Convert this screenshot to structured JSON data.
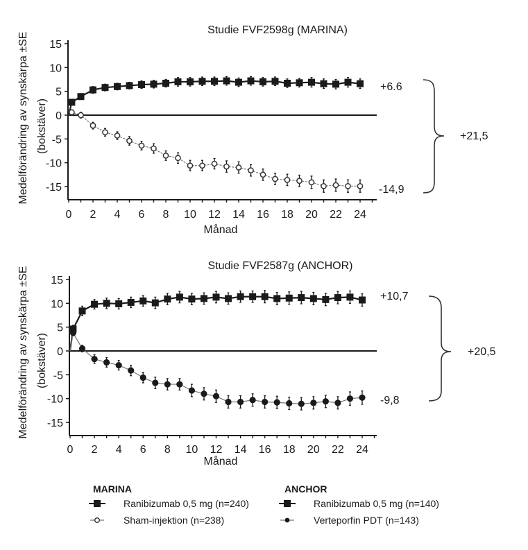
{
  "chart_data": [
    {
      "type": "line",
      "title": "Studie FVF2598g (MARINA)",
      "xlabel": "Månad",
      "ylabel": "Medelförändring av synskärpa ±SE",
      "ylabel2": "(bokstäver)",
      "xlim": [
        0,
        25
      ],
      "ylim": [
        -18,
        16
      ],
      "xticks": [
        "0",
        "2",
        "4",
        "6",
        "8",
        "10",
        "12",
        "14",
        "16",
        "18",
        "20",
        "22",
        "24"
      ],
      "xtick_values": [
        0,
        2,
        4,
        6,
        8,
        10,
        12,
        14,
        16,
        18,
        20,
        22,
        24
      ],
      "yticks": [
        "15",
        "10",
        "5",
        "0",
        "-5",
        "-10",
        "-15"
      ],
      "ytick_values": [
        15,
        10,
        5,
        0,
        -5,
        -10,
        -15
      ],
      "reference_line_y": 0,
      "x": [
        0.25,
        1,
        2,
        3,
        4,
        5,
        6,
        7,
        8,
        9,
        10,
        11,
        12,
        13,
        14,
        15,
        16,
        17,
        18,
        19,
        20,
        21,
        22,
        23,
        24
      ],
      "series": [
        {
          "name": "Ranibizumab 0,5 mg (n=240)",
          "marker": "filled-square",
          "values": [
            2.7,
            3.9,
            5.3,
            5.8,
            6.0,
            6.2,
            6.4,
            6.5,
            6.7,
            7.0,
            7.0,
            7.1,
            7.1,
            7.2,
            6.9,
            7.2,
            7.0,
            7.1,
            6.7,
            6.8,
            6.9,
            6.6,
            6.5,
            6.9,
            6.6
          ],
          "se": [
            0.6,
            0.6,
            0.7,
            0.7,
            0.7,
            0.7,
            0.8,
            0.8,
            0.8,
            0.9,
            0.9,
            0.9,
            0.9,
            0.9,
            0.9,
            0.9,
            0.9,
            0.9,
            0.9,
            0.9,
            1.0,
            1.0,
            1.0,
            1.0,
            1.0
          ]
        },
        {
          "name": "Sham-injektion (n=238)",
          "marker": "open-circle",
          "values": [
            0.6,
            0.0,
            -2.2,
            -3.6,
            -4.3,
            -5.4,
            -6.4,
            -7.0,
            -8.5,
            -9.0,
            -10.6,
            -10.6,
            -10.2,
            -10.8,
            -11.0,
            -11.6,
            -12.5,
            -13.4,
            -13.6,
            -13.8,
            -14.1,
            -14.9,
            -14.7,
            -14.9,
            -14.9
          ],
          "se": [
            0.5,
            0.6,
            0.7,
            0.8,
            0.8,
            0.9,
            0.9,
            1.0,
            1.0,
            1.1,
            1.1,
            1.1,
            1.1,
            1.2,
            1.2,
            1.2,
            1.2,
            1.2,
            1.2,
            1.2,
            1.3,
            1.3,
            1.3,
            1.3,
            1.3
          ]
        }
      ],
      "annotations": {
        "end_upper": "+6.6",
        "end_lower": "-14,9",
        "difference": "+21,5"
      }
    },
    {
      "type": "line",
      "title": "Studie FVF2587g (ANCHOR)",
      "xlabel": "Månad",
      "ylabel": "Medelförändring av synskärpa ±SE",
      "ylabel2": "(bokstäver)",
      "xlim": [
        0,
        25
      ],
      "ylim": [
        -18,
        16
      ],
      "xticks": [
        "0",
        "2",
        "4",
        "6",
        "8",
        "10",
        "12",
        "14",
        "16",
        "18",
        "20",
        "22",
        "24"
      ],
      "xtick_values": [
        0,
        2,
        4,
        6,
        8,
        10,
        12,
        14,
        16,
        18,
        20,
        22,
        24
      ],
      "yticks": [
        "15",
        "10",
        "5",
        "0",
        "-5",
        "-10",
        "-15"
      ],
      "ytick_values": [
        15,
        10,
        5,
        0,
        -5,
        -10,
        -15
      ],
      "reference_line_y": 0,
      "x": [
        0.25,
        1,
        2,
        3,
        4,
        5,
        6,
        7,
        8,
        9,
        10,
        11,
        12,
        13,
        14,
        15,
        16,
        17,
        18,
        19,
        20,
        21,
        22,
        23,
        24
      ],
      "series": [
        {
          "name": "Ranibizumab 0,5 mg (n=140)",
          "marker": "filled-square",
          "values": [
            4.6,
            8.4,
            9.8,
            10.0,
            9.9,
            10.2,
            10.5,
            10.1,
            10.9,
            11.3,
            10.9,
            11.0,
            11.3,
            11.0,
            11.4,
            11.4,
            11.4,
            11.0,
            11.1,
            11.2,
            11.0,
            10.8,
            11.2,
            11.3,
            10.7
          ],
          "se": [
            0.8,
            1.0,
            1.0,
            1.1,
            1.1,
            1.1,
            1.1,
            1.2,
            1.2,
            1.2,
            1.2,
            1.2,
            1.2,
            1.2,
            1.2,
            1.2,
            1.3,
            1.3,
            1.3,
            1.3,
            1.3,
            1.3,
            1.3,
            1.3,
            1.3
          ]
        },
        {
          "name": "Verteporfin PDT (n=143)",
          "marker": "filled-circle",
          "values": [
            3.8,
            0.5,
            -1.7,
            -2.4,
            -3.0,
            -4.1,
            -5.6,
            -6.7,
            -7.0,
            -7.0,
            -8.3,
            -9.0,
            -9.5,
            -10.7,
            -10.7,
            -10.3,
            -10.7,
            -10.8,
            -11.0,
            -11.1,
            -10.9,
            -10.6,
            -10.9,
            -10.0,
            -9.8
          ],
          "se": [
            0.6,
            0.7,
            0.9,
            1.0,
            1.0,
            1.1,
            1.1,
            1.2,
            1.2,
            1.2,
            1.3,
            1.3,
            1.3,
            1.3,
            1.3,
            1.3,
            1.3,
            1.3,
            1.3,
            1.3,
            1.3,
            1.3,
            1.3,
            1.4,
            1.4
          ]
        }
      ],
      "annotations": {
        "end_upper": "+10,7",
        "end_lower": "-9,8",
        "difference": "+20,5"
      }
    }
  ],
  "legend": {
    "groups": [
      {
        "title": "MARINA",
        "items": [
          {
            "label": "Ranibizumab 0,5 mg (n=240)",
            "marker": "filled-square"
          },
          {
            "label": "Sham-injektion (n=238)",
            "marker": "open-circle"
          }
        ]
      },
      {
        "title": "ANCHOR",
        "items": [
          {
            "label": "Ranibizumab 0,5 mg (n=140)",
            "marker": "filled-square"
          },
          {
            "label": "Verteporfin PDT (n=143)",
            "marker": "filled-circle"
          }
        ]
      }
    ]
  },
  "colors": {
    "ink": "#1a1a1a",
    "control_line": "#777777"
  }
}
